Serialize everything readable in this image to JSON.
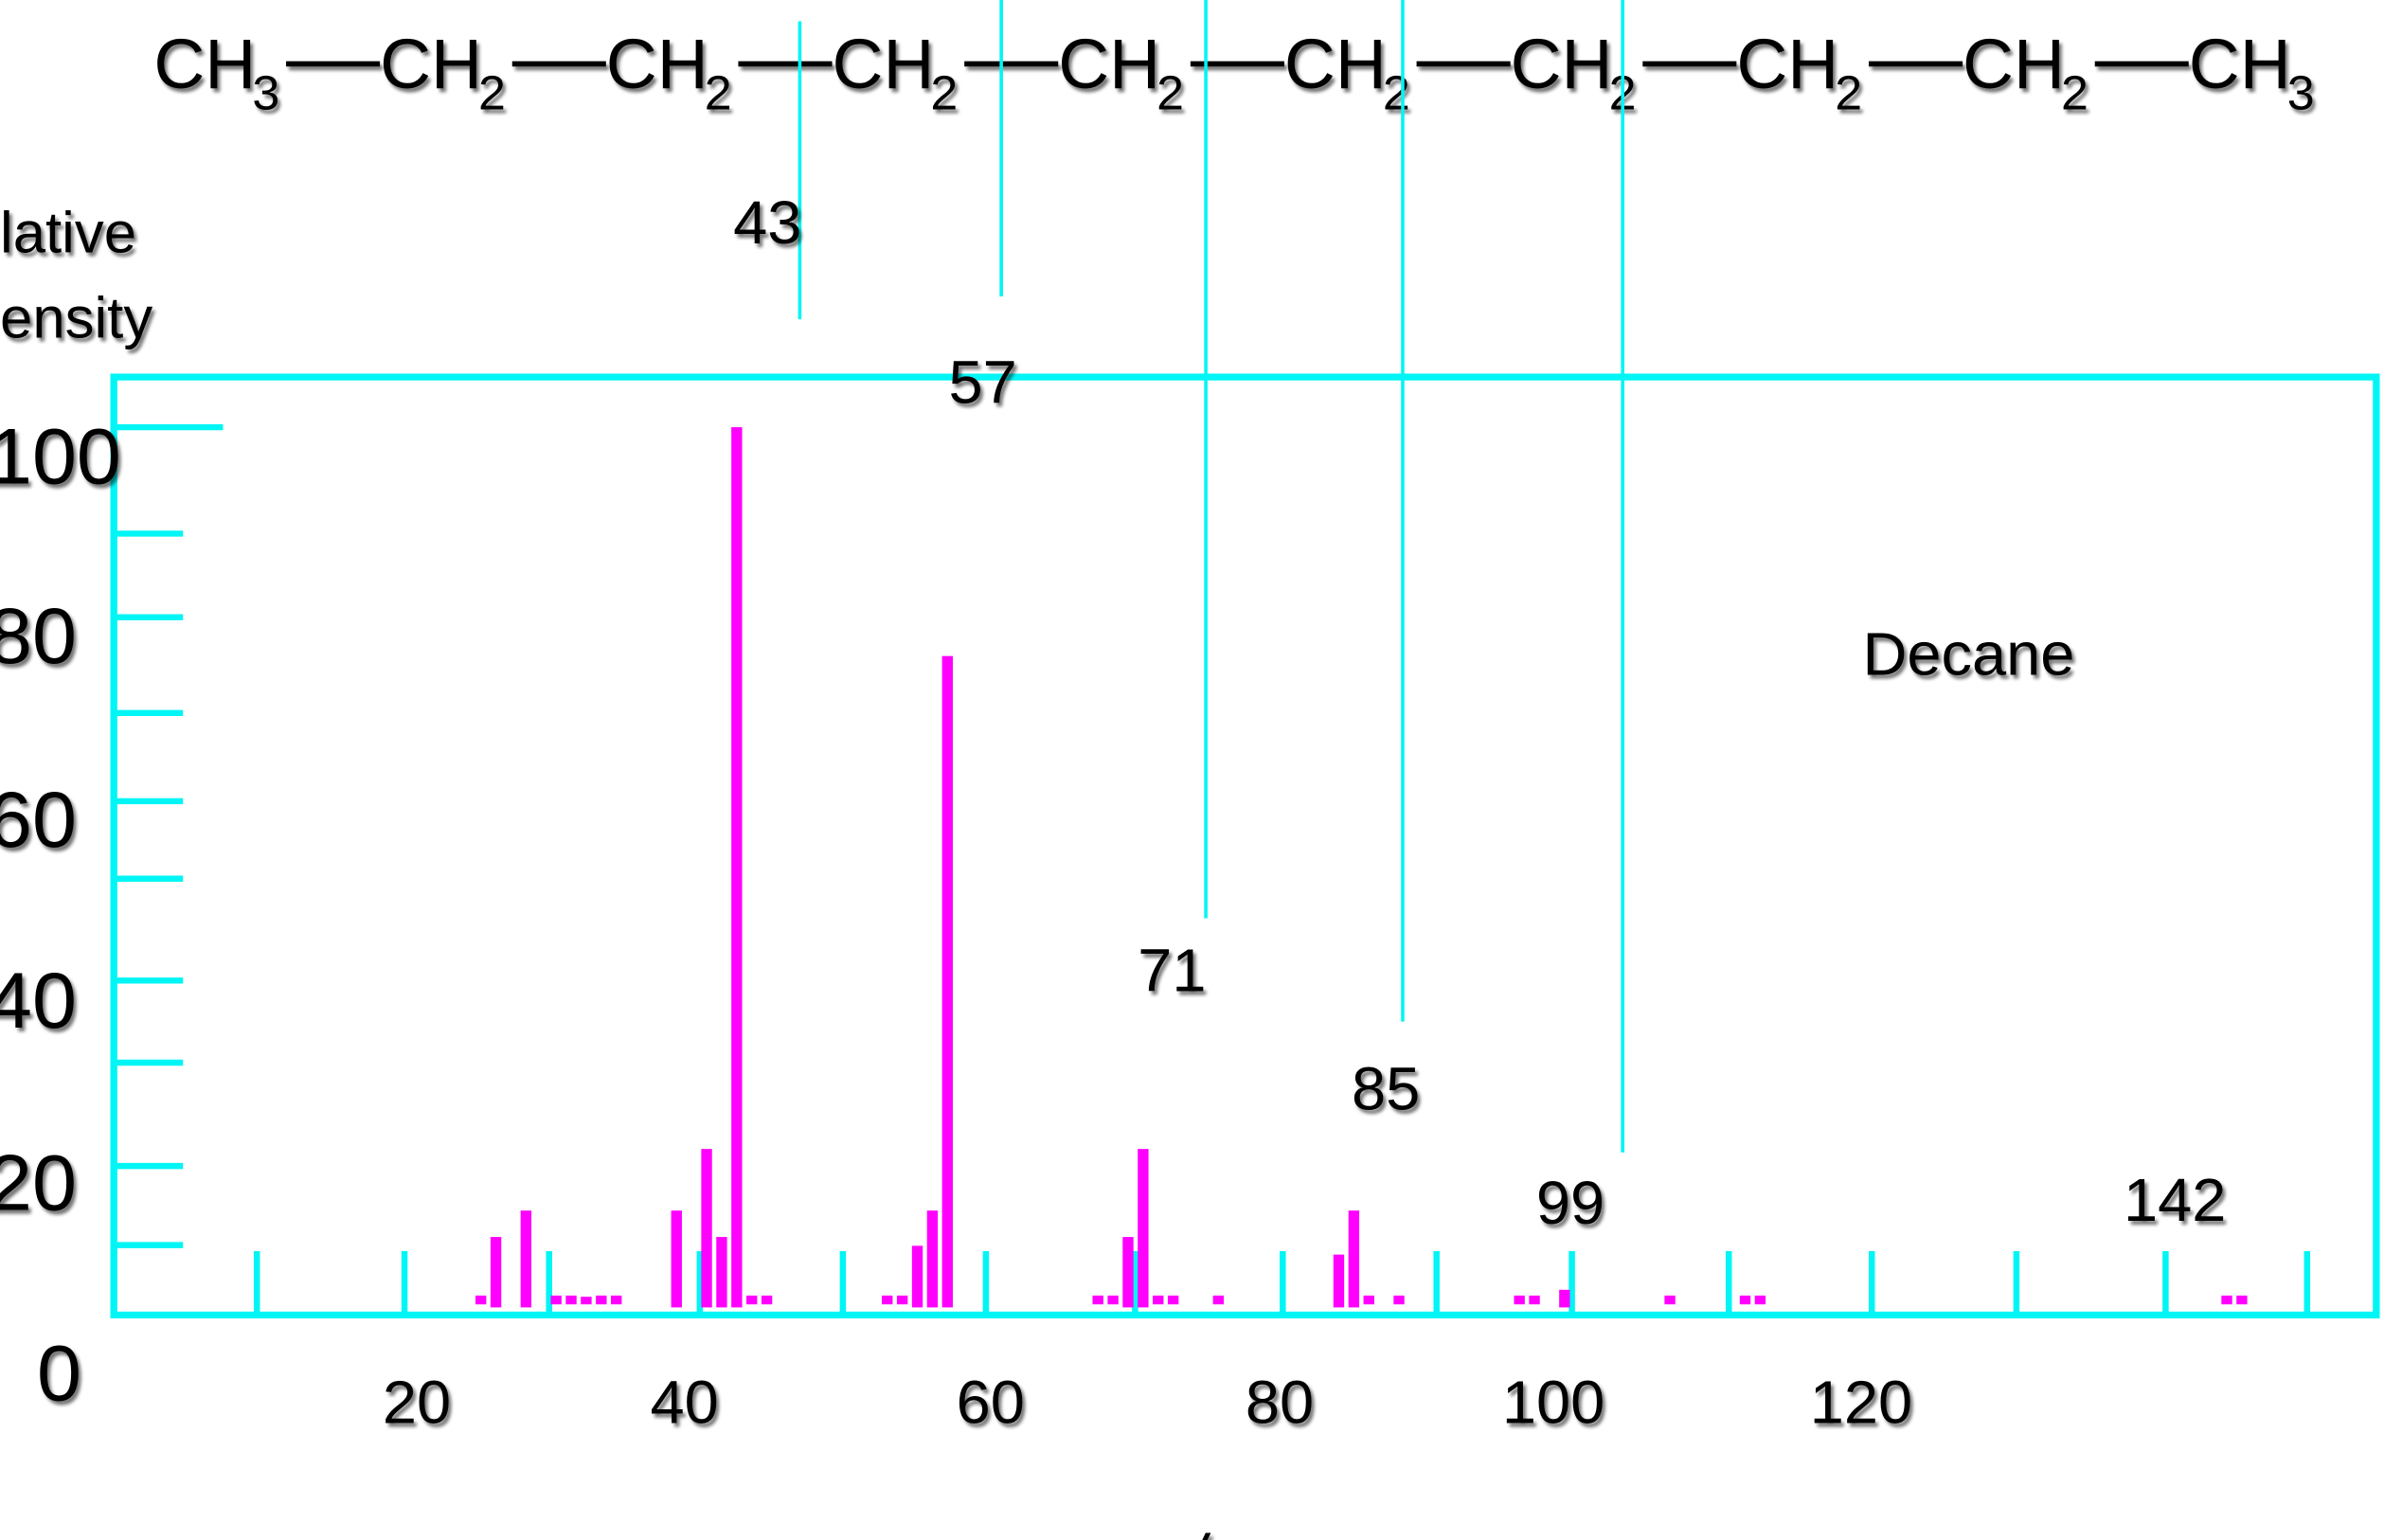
{
  "formula": {
    "groups": [
      {
        "base": "CH",
        "sub": "3"
      },
      {
        "base": "CH",
        "sub": "2"
      },
      {
        "base": "CH",
        "sub": "2"
      },
      {
        "base": "CH",
        "sub": "2"
      },
      {
        "base": "CH",
        "sub": "2"
      },
      {
        "base": "CH",
        "sub": "2"
      },
      {
        "base": "CH",
        "sub": "2"
      },
      {
        "base": "CH",
        "sub": "2"
      },
      {
        "base": "CH",
        "sub": "2"
      },
      {
        "base": "CH",
        "sub": "3"
      }
    ],
    "bond": "—"
  },
  "y_axis_label": {
    "line1": "lative",
    "line2": "ensity"
  },
  "compound_label": "Decane",
  "x_axis_label": "m/z",
  "fragment_labels": [
    "43",
    "57",
    "71",
    "85",
    "99",
    "142"
  ],
  "colors": {
    "axis": "#00f5f5",
    "bars": "#ff00ff",
    "text": "#000000",
    "background": "#ffffff"
  },
  "chart_data": {
    "type": "bar",
    "title": "Decane",
    "subtitle": "CH3—CH2—CH2—CH2—CH2—CH2—CH2—CH2—CH2—CH3",
    "xlabel": "m/z",
    "ylabel": "Relative Intensity",
    "ylim": [
      0,
      100
    ],
    "xlim": [
      0,
      150
    ],
    "y_ticks": [
      "0",
      "20",
      "40",
      "60",
      "80",
      "100"
    ],
    "x_ticks": [
      "20",
      "40",
      "60",
      "80",
      "100",
      "120"
    ],
    "grid": false,
    "legend": null,
    "annotations": [
      {
        "text": "43",
        "x": 43
      },
      {
        "text": "57",
        "x": 57
      },
      {
        "text": "71",
        "x": 71
      },
      {
        "text": "85",
        "x": 85
      },
      {
        "text": "99",
        "x": 99
      },
      {
        "text": "142",
        "x": 142
      },
      {
        "text": "Decane",
        "x": 128,
        "y": 74
      }
    ],
    "x": [
      26,
      27,
      29,
      31,
      32,
      33,
      34,
      35,
      39,
      41,
      42,
      43,
      44,
      45,
      53,
      54,
      55,
      56,
      57,
      67,
      68,
      69,
      70,
      71,
      72,
      75,
      83,
      84,
      85,
      87,
      95,
      96,
      98,
      105,
      110,
      111,
      142,
      143
    ],
    "values": [
      1,
      8,
      11,
      1,
      1,
      0.5,
      1,
      1,
      11,
      18,
      8,
      100,
      1,
      1,
      1,
      1,
      7,
      11,
      74,
      1,
      1,
      8,
      18,
      1,
      1,
      1,
      6,
      11,
      1,
      1,
      1,
      1,
      2,
      1,
      1,
      1,
      1,
      1
    ]
  }
}
